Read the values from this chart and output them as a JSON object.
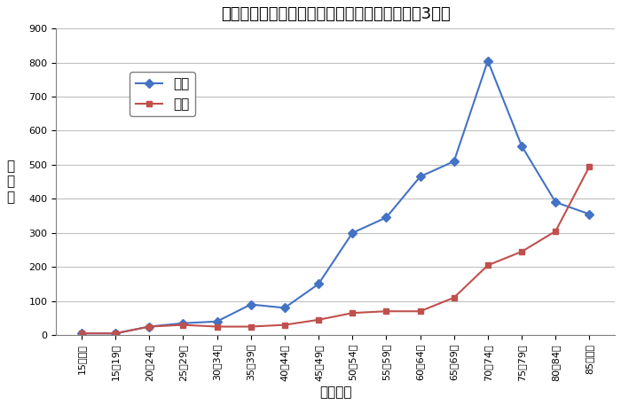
{
  "title": "性・年齢階級別の自宅死亡単身世帯者数（令和3年）",
  "xlabel": "年齢階級",
  "ylabel": "死\n亡\n数",
  "categories": [
    "15歳未満",
    "15～19歳",
    "20～24歳",
    "25～29歳",
    "30～34歳",
    "35～39歳",
    "40～44歳",
    "45～49歳",
    "50～54歳",
    "55～59歳",
    "60～64歳",
    "65～69歳",
    "70～74歳",
    "75～79歳",
    "80～84歳",
    "85歳以上"
  ],
  "male_values": [
    5,
    5,
    25,
    35,
    40,
    90,
    80,
    150,
    300,
    345,
    465,
    510,
    805,
    555,
    390,
    355
  ],
  "female_values": [
    5,
    5,
    25,
    30,
    25,
    25,
    30,
    45,
    65,
    70,
    70,
    110,
    205,
    245,
    305,
    495
  ],
  "male_color": "#4472C4",
  "female_color": "#C0504D",
  "male_label": "男性",
  "female_label": "女性",
  "ylim": [
    0,
    900
  ],
  "yticks": [
    0,
    100,
    200,
    300,
    400,
    500,
    600,
    700,
    800,
    900
  ],
  "bg_color": "#FFFFFF",
  "plot_bg_color": "#FFFFFF",
  "grid_color": "#C0C0C0",
  "title_fontsize": 13,
  "axis_label_fontsize": 11,
  "tick_fontsize": 8,
  "legend_fontsize": 11
}
